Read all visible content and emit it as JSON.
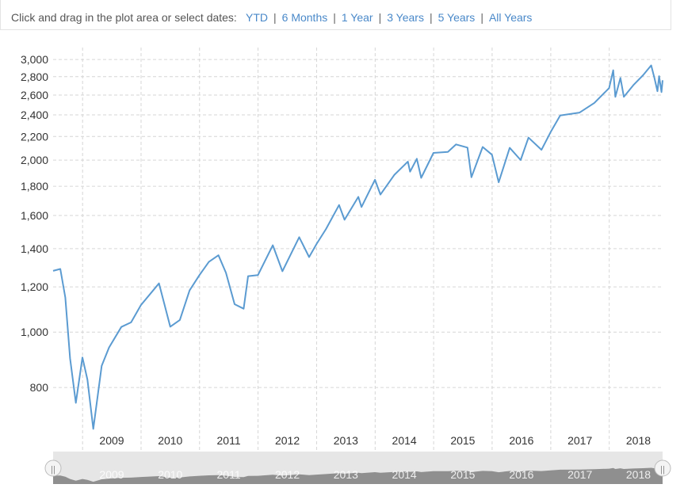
{
  "toolbar": {
    "prompt": "Click and drag in the plot area or select dates:",
    "ranges": [
      "YTD",
      "6 Months",
      "1 Year",
      "3 Years",
      "5 Years",
      "All Years"
    ]
  },
  "colors": {
    "line": "#5b9bd1",
    "grid": "#d6d6d6",
    "navigator_fill": "#8f8f8f",
    "navigator_bg": "#e6e6e6"
  },
  "chart_data": {
    "type": "line",
    "title": "",
    "xlabel": "",
    "ylabel": "",
    "y_scale": "log",
    "grid": true,
    "legend": "none",
    "ylim": [
      680,
      3050
    ],
    "xlim": [
      "2008-07-01",
      "2018-11-30"
    ],
    "yticks": [
      "800",
      "1,000",
      "1,200",
      "1,400",
      "1,600",
      "1,800",
      "2,000",
      "2,200",
      "2,400",
      "2,600",
      "2,800",
      "3,000"
    ],
    "xticks": [
      "2009",
      "2010",
      "2011",
      "2012",
      "2013",
      "2014",
      "2015",
      "2016",
      "2017",
      "2018"
    ],
    "series": [
      {
        "x": [
          "2008-07-01",
          "2008-08-15",
          "2008-09-15",
          "2008-10-15",
          "2008-11-20",
          "2008-12-31",
          "2009-01-31",
          "2009-03-09",
          "2009-04-30",
          "2009-06-15",
          "2009-08-31",
          "2009-10-31",
          "2009-12-31",
          "2010-04-23",
          "2010-07-02",
          "2010-08-31",
          "2010-10-31",
          "2010-12-31",
          "2011-02-28",
          "2011-04-29",
          "2011-06-15",
          "2011-08-08",
          "2011-10-03",
          "2011-10-31",
          "2011-12-31",
          "2012-04-02",
          "2012-06-01",
          "2012-09-14",
          "2012-11-15",
          "2012-12-31",
          "2013-02-28",
          "2013-05-21",
          "2013-06-24",
          "2013-09-18",
          "2013-10-08",
          "2013-12-31",
          "2014-02-03",
          "2014-04-30",
          "2014-07-24",
          "2014-08-07",
          "2014-09-18",
          "2014-10-15",
          "2014-12-31",
          "2015-03-31",
          "2015-05-21",
          "2015-07-31",
          "2015-08-25",
          "2015-11-03",
          "2015-12-31",
          "2016-02-11",
          "2016-04-20",
          "2016-06-27",
          "2016-08-15",
          "2016-11-04",
          "2016-12-31",
          "2017-03-01",
          "2017-06-30",
          "2017-09-30",
          "2017-12-31",
          "2018-01-26",
          "2018-02-08",
          "2018-03-12",
          "2018-04-02",
          "2018-05-31",
          "2018-07-31",
          "2018-09-20",
          "2018-10-10",
          "2018-10-29",
          "2018-11-08",
          "2018-11-23",
          "2018-11-30"
        ],
        "y": [
          1280,
          1290,
          1150,
          900,
          752,
          903,
          826,
          677,
          873,
          940,
          1021,
          1040,
          1115,
          1217,
          1022,
          1050,
          1183,
          1258,
          1327,
          1363,
          1270,
          1119,
          1099,
          1253,
          1258,
          1419,
          1278,
          1466,
          1353,
          1426,
          1515,
          1669,
          1573,
          1725,
          1656,
          1848,
          1741,
          1884,
          1988,
          1909,
          2011,
          1862,
          2059,
          2068,
          2131,
          2104,
          1867,
          2109,
          2044,
          1829,
          2102,
          2001,
          2190,
          2085,
          2239,
          2395,
          2423,
          2519,
          2674,
          2873,
          2581,
          2786,
          2582,
          2705,
          2816,
          2931,
          2785,
          2641,
          2806,
          2632,
          2760
        ]
      }
    ]
  },
  "navigator": {
    "labels": [
      "2009",
      "2010",
      "2011",
      "2012",
      "2013",
      "2014",
      "2015",
      "2016",
      "2017",
      "2018"
    ],
    "handle_glyph": "||"
  }
}
